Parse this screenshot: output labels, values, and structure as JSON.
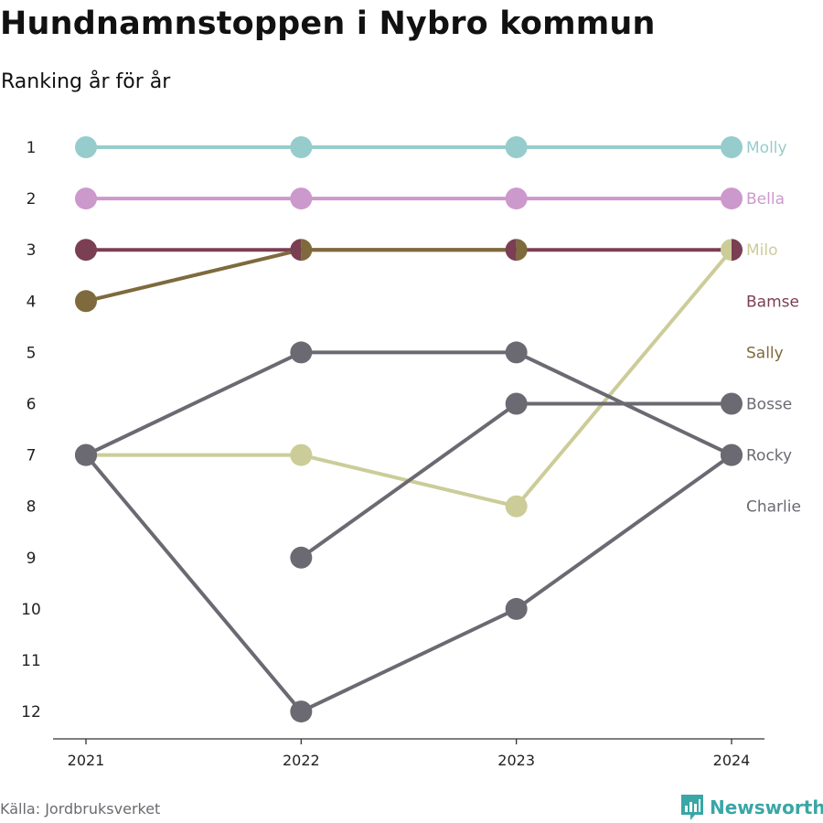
{
  "title": "Hundnamnstoppen i Nybro kommun",
  "subtitle": "Ranking år för år",
  "source": "Källa: Jordbruksverket",
  "brand": "Newsworthy",
  "chart_data": {
    "type": "line",
    "subtype": "bump",
    "x": [
      "2021",
      "2022",
      "2023",
      "2024"
    ],
    "y_ticks": [
      1,
      2,
      3,
      4,
      5,
      6,
      7,
      8,
      9,
      10,
      11,
      12
    ],
    "ylim": [
      1,
      12
    ],
    "y_reversed": true,
    "grid": false,
    "legend": "right end labels",
    "series": [
      {
        "name": "Molly",
        "color": "#96cccc",
        "values": [
          1,
          1,
          1,
          1
        ]
      },
      {
        "name": "Bella",
        "color": "#cc99cc",
        "values": [
          2,
          2,
          2,
          2
        ]
      },
      {
        "name": "Milo",
        "color": "#cccc99",
        "values": [
          7,
          7,
          8,
          3
        ]
      },
      {
        "name": "Bamse",
        "color": "#7a3f52",
        "values": [
          3,
          3,
          3,
          3
        ]
      },
      {
        "name": "Sally",
        "color": "#7e6a3c",
        "values": [
          4,
          3,
          3,
          null
        ]
      },
      {
        "name": "Bosse",
        "color": "#6b6a72",
        "values": [
          null,
          9,
          6,
          6
        ]
      },
      {
        "name": "Rocky",
        "color": "#6b6a72",
        "values": [
          7,
          5,
          5,
          7
        ]
      },
      {
        "name": "Charlie",
        "color": "#6b6a72",
        "values": [
          7,
          12,
          10,
          7
        ]
      }
    ]
  }
}
